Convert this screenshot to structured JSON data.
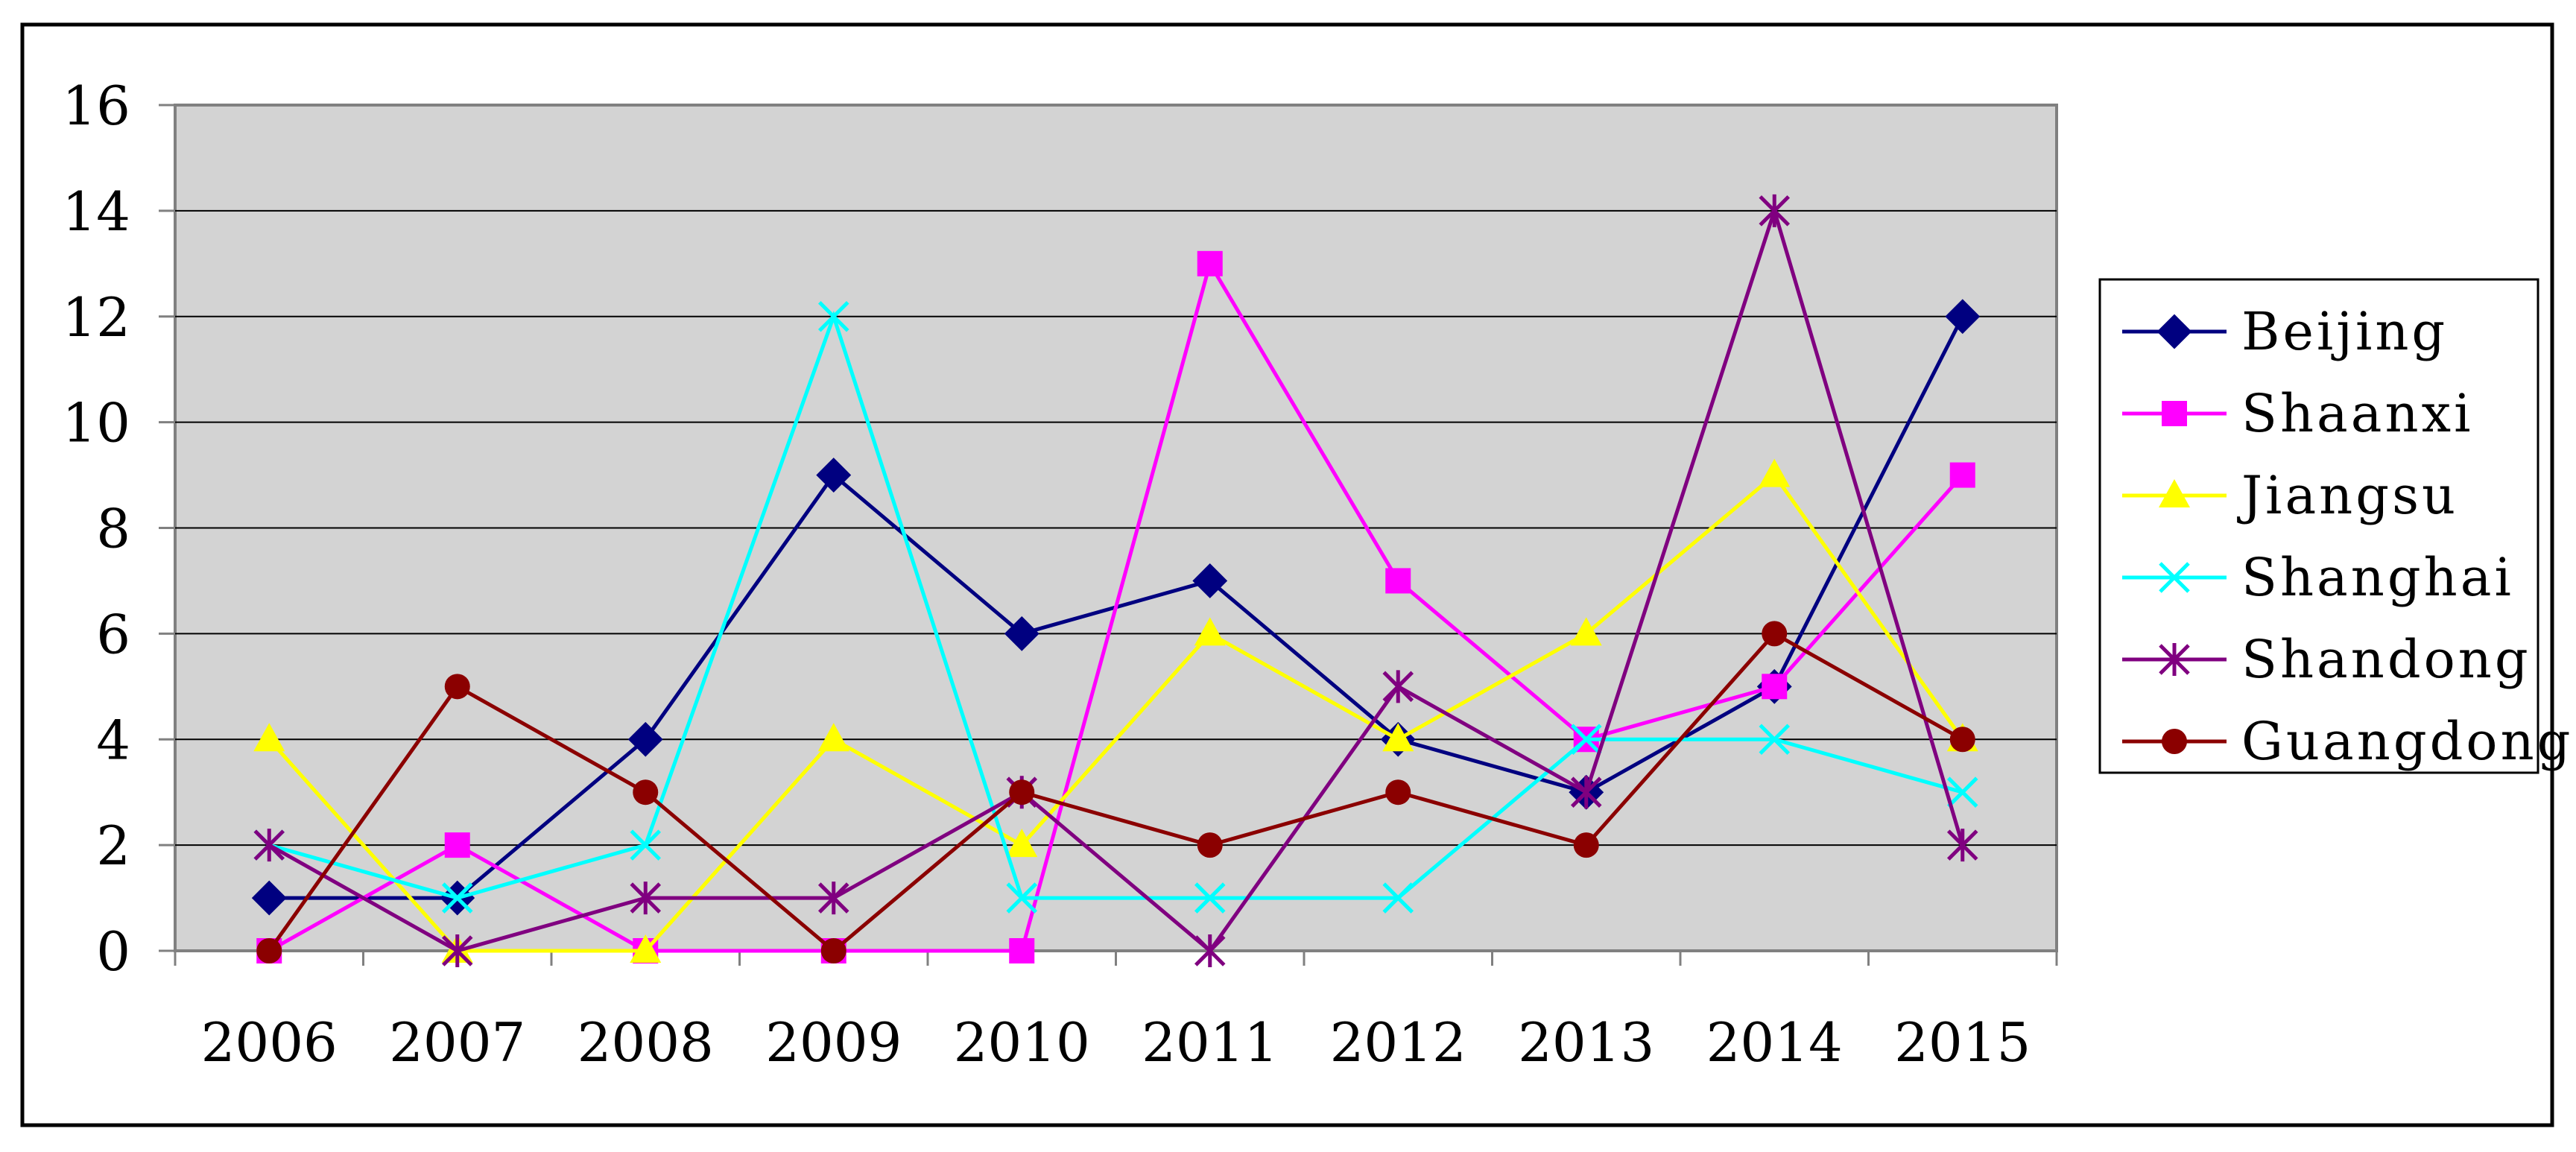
{
  "chart_data": {
    "type": "line",
    "title": "",
    "xlabel": "",
    "ylabel": "",
    "ylim": [
      0,
      16
    ],
    "yticks": [
      0,
      2,
      4,
      6,
      8,
      10,
      12,
      14,
      16
    ],
    "categories": [
      "2006",
      "2007",
      "2008",
      "2009",
      "2010",
      "2011",
      "2012",
      "2013",
      "2014",
      "2015"
    ],
    "grid": "horizontal",
    "legend_position": "right",
    "plot_background": "#d3d3d3",
    "series": [
      {
        "name": "Beijing",
        "color": "#000080",
        "marker": "diamond",
        "values": [
          1,
          1,
          4,
          9,
          6,
          7,
          4,
          3,
          5,
          12
        ]
      },
      {
        "name": "Shaanxi",
        "color": "#ff00ff",
        "marker": "square",
        "values": [
          0,
          2,
          0,
          0,
          0,
          13,
          7,
          4,
          5,
          9
        ]
      },
      {
        "name": "Jiangsu",
        "color": "#ffff00",
        "marker": "triangle",
        "values": [
          4,
          0,
          0,
          4,
          2,
          6,
          4,
          6,
          9,
          4
        ]
      },
      {
        "name": "Shanghai",
        "color": "#00ffff",
        "marker": "x",
        "values": [
          2,
          1,
          2,
          12,
          1,
          1,
          1,
          4,
          4,
          3
        ]
      },
      {
        "name": "Shandong",
        "color": "#800080",
        "marker": "star",
        "values": [
          2,
          0,
          1,
          1,
          3,
          0,
          5,
          3,
          14,
          2
        ]
      },
      {
        "name": "Guangdong",
        "color": "#8b0000",
        "marker": "circle",
        "values": [
          0,
          5,
          3,
          0,
          3,
          2,
          3,
          2,
          6,
          4
        ]
      }
    ]
  }
}
